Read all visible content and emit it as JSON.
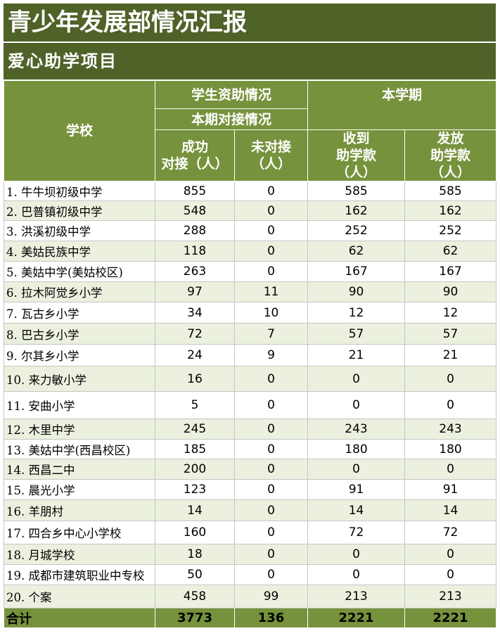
{
  "title": "青少年发展部情况汇报",
  "subtitle": "爱心助学项目",
  "header": {
    "school": "学校",
    "group1": "学生资助情况",
    "group1_sub": "本期对接情况",
    "col_success": "成功\n对接（人）",
    "col_notmatched": "未对接\n（人）",
    "group2": "本学期",
    "col_received": "收到\n助学款\n（人）",
    "col_issued": "发放\n助学款\n（人）"
  },
  "rows": [
    {
      "name": "1. 牛牛坝初级中学",
      "success": "855",
      "not": "0",
      "received": "585",
      "issued": "585"
    },
    {
      "name": "2. 巴普镇初级中学",
      "success": "548",
      "not": "0",
      "received": "162",
      "issued": "162"
    },
    {
      "name": "3. 洪溪初级中学",
      "success": "288",
      "not": "0",
      "received": "252",
      "issued": "252"
    },
    {
      "name": "4. 美姑民族中学",
      "success": "118",
      "not": "0",
      "received": "62",
      "issued": "62"
    },
    {
      "name": "5. 美姑中学(美姑校区)",
      "success": "263",
      "not": "0",
      "received": "167",
      "issued": "167"
    },
    {
      "name": "6. 拉木阿觉乡小学",
      "success": "97",
      "not": "11",
      "received": "90",
      "issued": "90"
    },
    {
      "name": "7. 瓦古乡小学",
      "success": "34",
      "not": "10",
      "received": "12",
      "issued": "12"
    },
    {
      "name": "8. 巴古乡小学",
      "success": "72",
      "not": "7",
      "received": "57",
      "issued": "57"
    },
    {
      "name": "9. 尔其乡小学",
      "success": "24",
      "not": "9",
      "received": "21",
      "issued": "21"
    },
    {
      "name": "10. 来力敏小学",
      "success": "16",
      "not": "0",
      "received": "0",
      "issued": "0"
    },
    {
      "name": "11. 安曲小学",
      "success": "5",
      "not": "0",
      "received": "0",
      "issued": "0"
    },
    {
      "name": "12. 木里中学",
      "success": "245",
      "not": "0",
      "received": "243",
      "issued": "243"
    },
    {
      "name": "13. 美姑中学(西昌校区)",
      "success": "185",
      "not": "0",
      "received": "180",
      "issued": "180"
    },
    {
      "name": "14. 西昌二中",
      "success": "200",
      "not": "0",
      "received": "0",
      "issued": "0"
    },
    {
      "name": "15. 晨光小学",
      "success": "123",
      "not": "0",
      "received": "91",
      "issued": "91"
    },
    {
      "name": "16. 羊朋村",
      "success": "14",
      "not": "0",
      "received": "14",
      "issued": "14"
    },
    {
      "name": "17. 四合乡中心小学校",
      "success": "160",
      "not": "0",
      "received": "72",
      "issued": "72"
    },
    {
      "name": "18. 月城学校",
      "success": "18",
      "not": "0",
      "received": "0",
      "issued": "0"
    },
    {
      "name": "19. 成都市建筑职业中专校",
      "success": "50",
      "not": "0",
      "received": "0",
      "issued": "0"
    },
    {
      "name": "20. 个案",
      "success": "458",
      "not": "99",
      "received": "213",
      "issued": "213"
    }
  ],
  "total": {
    "name": "合计",
    "success": "3773",
    "not": "136",
    "received": "2221",
    "issued": "2221"
  },
  "colors": {
    "dark_green": "#4f6228",
    "header_green": "#76923c",
    "alt_row": "#ebf1de"
  }
}
